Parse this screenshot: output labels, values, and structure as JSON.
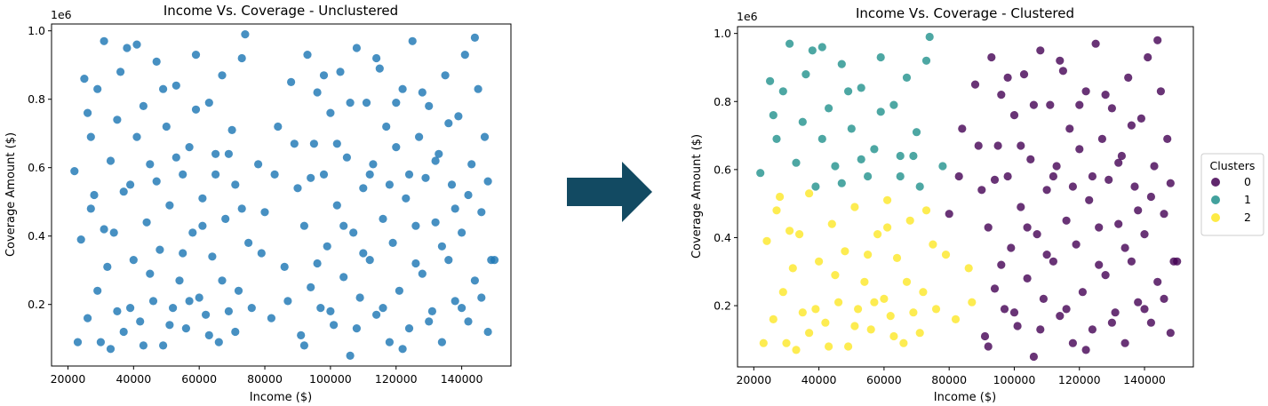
{
  "chart_data": [
    {
      "type": "scatter",
      "title": "Income Vs. Coverage - Unclustered",
      "xlabel": "Income ($)",
      "ylabel": "Coverage Amount ($)",
      "y_offset_text": "1e6",
      "xlim": [
        15000,
        155000
      ],
      "ylim": [
        0.02,
        1.02
      ],
      "x_ticks": [
        20000,
        40000,
        60000,
        80000,
        100000,
        120000,
        140000
      ],
      "y_ticks": [
        0.2,
        0.4,
        0.6,
        0.8,
        1.0
      ],
      "x_tick_labels": [
        "20000",
        "40000",
        "60000",
        "80000",
        "100000",
        "120000",
        "140000"
      ],
      "y_tick_labels": [
        "0.2",
        "0.4",
        "0.6",
        "0.8",
        "1.0"
      ],
      "grid": false,
      "color": "#1f77b4",
      "points": [
        [
          22000,
          0.59
        ],
        [
          23000,
          0.09
        ],
        [
          24000,
          0.39
        ],
        [
          25000,
          0.86
        ],
        [
          26000,
          0.76
        ],
        [
          27000,
          0.69
        ],
        [
          28000,
          0.52
        ],
        [
          29000,
          0.24
        ],
        [
          30000,
          0.09
        ],
        [
          31000,
          0.97
        ],
        [
          32000,
          0.31
        ],
        [
          33000,
          0.62
        ],
        [
          34000,
          0.41
        ],
        [
          35000,
          0.18
        ],
        [
          36000,
          0.88
        ],
        [
          37000,
          0.12
        ],
        [
          38000,
          0.95
        ],
        [
          39000,
          0.55
        ],
        [
          40000,
          0.33
        ],
        [
          41000,
          0.69
        ],
        [
          42000,
          0.15
        ],
        [
          43000,
          0.78
        ],
        [
          44000,
          0.44
        ],
        [
          45000,
          0.61
        ],
        [
          46000,
          0.21
        ],
        [
          47000,
          0.91
        ],
        [
          48000,
          0.36
        ],
        [
          49000,
          0.08
        ],
        [
          50000,
          0.72
        ],
        [
          51000,
          0.49
        ],
        [
          52000,
          0.19
        ],
        [
          53000,
          0.84
        ],
        [
          54000,
          0.27
        ],
        [
          55000,
          0.58
        ],
        [
          56000,
          0.13
        ],
        [
          57000,
          0.66
        ],
        [
          58000,
          0.41
        ],
        [
          59000,
          0.93
        ],
        [
          60000,
          0.22
        ],
        [
          61000,
          0.51
        ],
        [
          62000,
          0.17
        ],
        [
          63000,
          0.79
        ],
        [
          64000,
          0.34
        ],
        [
          65000,
          0.64
        ],
        [
          66000,
          0.09
        ],
        [
          67000,
          0.87
        ],
        [
          68000,
          0.45
        ],
        [
          69000,
          0.18
        ],
        [
          70000,
          0.71
        ],
        [
          71000,
          0.55
        ],
        [
          72000,
          0.24
        ],
        [
          73000,
          0.92
        ],
        [
          74000,
          0.99
        ],
        [
          75000,
          0.38
        ],
        [
          78000,
          0.61
        ],
        [
          80000,
          0.47
        ],
        [
          82000,
          0.16
        ],
        [
          84000,
          0.72
        ],
        [
          86000,
          0.31
        ],
        [
          88000,
          0.85
        ],
        [
          90000,
          0.54
        ],
        [
          91000,
          0.11
        ],
        [
          92000,
          0.43
        ],
        [
          93000,
          0.93
        ],
        [
          94000,
          0.25
        ],
        [
          95000,
          0.67
        ],
        [
          96000,
          0.82
        ],
        [
          97000,
          0.19
        ],
        [
          98000,
          0.58
        ],
        [
          99000,
          0.37
        ],
        [
          100000,
          0.76
        ],
        [
          101000,
          0.14
        ],
        [
          102000,
          0.49
        ],
        [
          103000,
          0.88
        ],
        [
          104000,
          0.28
        ],
        [
          105000,
          0.63
        ],
        [
          106000,
          0.05
        ],
        [
          107000,
          0.41
        ],
        [
          108000,
          0.95
        ],
        [
          109000,
          0.22
        ],
        [
          110000,
          0.54
        ],
        [
          111000,
          0.79
        ],
        [
          112000,
          0.33
        ],
        [
          113000,
          0.61
        ],
        [
          114000,
          0.17
        ],
        [
          115000,
          0.89
        ],
        [
          116000,
          0.45
        ],
        [
          117000,
          0.72
        ],
        [
          118000,
          0.09
        ],
        [
          119000,
          0.38
        ],
        [
          120000,
          0.66
        ],
        [
          121000,
          0.24
        ],
        [
          122000,
          0.83
        ],
        [
          123000,
          0.51
        ],
        [
          124000,
          0.13
        ],
        [
          125000,
          0.97
        ],
        [
          126000,
          0.43
        ],
        [
          127000,
          0.69
        ],
        [
          128000,
          0.29
        ],
        [
          129000,
          0.57
        ],
        [
          130000,
          0.78
        ],
        [
          131000,
          0.18
        ],
        [
          132000,
          0.44
        ],
        [
          133000,
          0.64
        ],
        [
          134000,
          0.09
        ],
        [
          135000,
          0.87
        ],
        [
          136000,
          0.33
        ],
        [
          137000,
          0.55
        ],
        [
          138000,
          0.21
        ],
        [
          139000,
          0.75
        ],
        [
          140000,
          0.41
        ],
        [
          141000,
          0.93
        ],
        [
          142000,
          0.15
        ],
        [
          143000,
          0.61
        ],
        [
          144000,
          0.27
        ],
        [
          145000,
          0.83
        ],
        [
          146000,
          0.47
        ],
        [
          147000,
          0.69
        ],
        [
          148000,
          0.12
        ],
        [
          149000,
          0.33
        ],
        [
          26000,
          0.16
        ],
        [
          27000,
          0.48
        ],
        [
          29000,
          0.83
        ],
        [
          31000,
          0.42
        ],
        [
          33000,
          0.07
        ],
        [
          35000,
          0.74
        ],
        [
          37000,
          0.53
        ],
        [
          39000,
          0.19
        ],
        [
          41000,
          0.96
        ],
        [
          43000,
          0.08
        ],
        [
          45000,
          0.29
        ],
        [
          47000,
          0.56
        ],
        [
          49000,
          0.83
        ],
        [
          51000,
          0.14
        ],
        [
          53000,
          0.63
        ],
        [
          55000,
          0.35
        ],
        [
          57000,
          0.21
        ],
        [
          59000,
          0.77
        ],
        [
          61000,
          0.43
        ],
        [
          63000,
          0.11
        ],
        [
          65000,
          0.58
        ],
        [
          67000,
          0.27
        ],
        [
          69000,
          0.64
        ],
        [
          71000,
          0.12
        ],
        [
          73000,
          0.48
        ],
        [
          76000,
          0.19
        ],
        [
          79000,
          0.35
        ],
        [
          83000,
          0.58
        ],
        [
          87000,
          0.21
        ],
        [
          89000,
          0.67
        ],
        [
          92000,
          0.08
        ],
        [
          94000,
          0.57
        ],
        [
          96000,
          0.32
        ],
        [
          98000,
          0.87
        ],
        [
          100000,
          0.18
        ],
        [
          102000,
          0.67
        ],
        [
          104000,
          0.43
        ],
        [
          106000,
          0.79
        ],
        [
          108000,
          0.13
        ],
        [
          110000,
          0.35
        ],
        [
          112000,
          0.58
        ],
        [
          114000,
          0.92
        ],
        [
          116000,
          0.19
        ],
        [
          118000,
          0.55
        ],
        [
          120000,
          0.79
        ],
        [
          122000,
          0.07
        ],
        [
          124000,
          0.58
        ],
        [
          126000,
          0.32
        ],
        [
          128000,
          0.82
        ],
        [
          130000,
          0.15
        ],
        [
          132000,
          0.62
        ],
        [
          134000,
          0.37
        ],
        [
          136000,
          0.73
        ],
        [
          138000,
          0.48
        ],
        [
          140000,
          0.19
        ],
        [
          142000,
          0.52
        ],
        [
          144000,
          0.98
        ],
        [
          146000,
          0.22
        ],
        [
          148000,
          0.56
        ],
        [
          150000,
          0.33
        ]
      ]
    },
    {
      "type": "scatter",
      "title": "Income Vs. Coverage - Clustered",
      "xlabel": "Income ($)",
      "ylabel": "Coverage Amount ($)",
      "y_offset_text": "1e6",
      "xlim": [
        15000,
        155000
      ],
      "ylim": [
        0.02,
        1.02
      ],
      "x_ticks": [
        20000,
        40000,
        60000,
        80000,
        100000,
        120000,
        140000
      ],
      "y_ticks": [
        0.2,
        0.4,
        0.6,
        0.8,
        1.0
      ],
      "x_tick_labels": [
        "20000",
        "40000",
        "60000",
        "80000",
        "100000",
        "120000",
        "140000"
      ],
      "y_tick_labels": [
        "0.2",
        "0.4",
        "0.6",
        "0.8",
        "1.0"
      ],
      "grid": false,
      "legend": {
        "title": "Clusters",
        "placement": "right-outside",
        "entries": [
          {
            "label": "0",
            "color": "#440154"
          },
          {
            "label": "1",
            "color": "#21918c"
          },
          {
            "label": "2",
            "color": "#fde725"
          }
        ]
      },
      "cluster_rule": "cluster 0: income >= 90000 (or >= 80000 and coverage >= 0.45); cluster 1: remaining with coverage >= 0.55; cluster 2: remaining"
    }
  ],
  "arrow": {
    "color": "#124a62"
  }
}
